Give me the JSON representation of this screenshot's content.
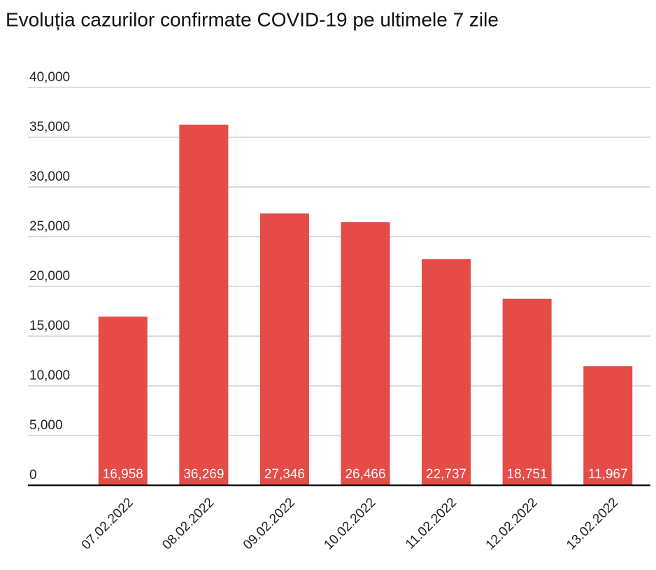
{
  "chart_data": {
    "type": "bar",
    "title": "Evoluția cazurilor confirmate COVID-19 pe ultimele 7 zile",
    "categories": [
      "07.02.2022",
      "08.02.2022",
      "09.02.2022",
      "10.02.2022",
      "11.02.2022",
      "12.02.2022",
      "13.02.2022"
    ],
    "values": [
      16958,
      36269,
      27346,
      26466,
      22737,
      18751,
      11967
    ],
    "value_labels": [
      "16,958",
      "36,269",
      "27,346",
      "26,466",
      "22,737",
      "18,751",
      "11,967"
    ],
    "color": "#e54b47",
    "ylim": [
      0,
      40000
    ],
    "yticks": [
      0,
      {
        "value": 5000,
        "label": "5,000"
      },
      {
        "value": 10000,
        "label": "10,000"
      },
      {
        "value": 15000,
        "label": "15,000"
      },
      {
        "value": 20000,
        "label": "20,000"
      },
      {
        "value": 25000,
        "label": "25,000"
      },
      {
        "value": 30000,
        "label": "30,000"
      },
      {
        "value": 35000,
        "label": "35,000"
      },
      {
        "value": 40000,
        "label": "40,000"
      }
    ],
    "grid": true
  }
}
